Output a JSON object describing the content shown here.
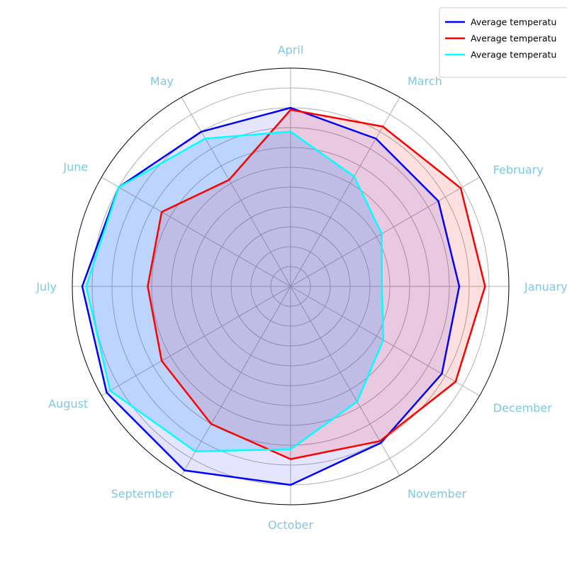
{
  "chart_data": {
    "type": "radar",
    "categories": [
      "January",
      "February",
      "March",
      "April",
      "May",
      "June",
      "July",
      "August",
      "September",
      "October",
      "November",
      "December"
    ],
    "rlim": [
      0,
      11
    ],
    "grid": true,
    "legend_position": "top-right",
    "label_color": "#7ec8e3",
    "series": [
      {
        "name": "Average temperatu",
        "color": "#0000ff",
        "fill": "#0000ff",
        "fill_opacity": 0.1,
        "values": [
          8.5,
          8.6,
          8.6,
          9.0,
          9.0,
          10.0,
          10.5,
          10.7,
          10.7,
          10.0,
          9.1,
          8.8
        ]
      },
      {
        "name": "Average temperatu",
        "color": "#ff0000",
        "fill": "#ff0000",
        "fill_opacity": 0.12,
        "values": [
          9.8,
          9.9,
          9.3,
          8.9,
          6.2,
          7.5,
          7.2,
          7.5,
          8.0,
          8.7,
          9.0,
          9.6
        ]
      },
      {
        "name": "Average temperatu",
        "color": "#00ffff",
        "fill": "#1e90ff",
        "fill_opacity": 0.2,
        "values": [
          4.6,
          5.3,
          6.4,
          7.8,
          8.6,
          10.0,
          10.3,
          10.5,
          9.6,
          8.2,
          6.7,
          5.4
        ]
      }
    ]
  }
}
